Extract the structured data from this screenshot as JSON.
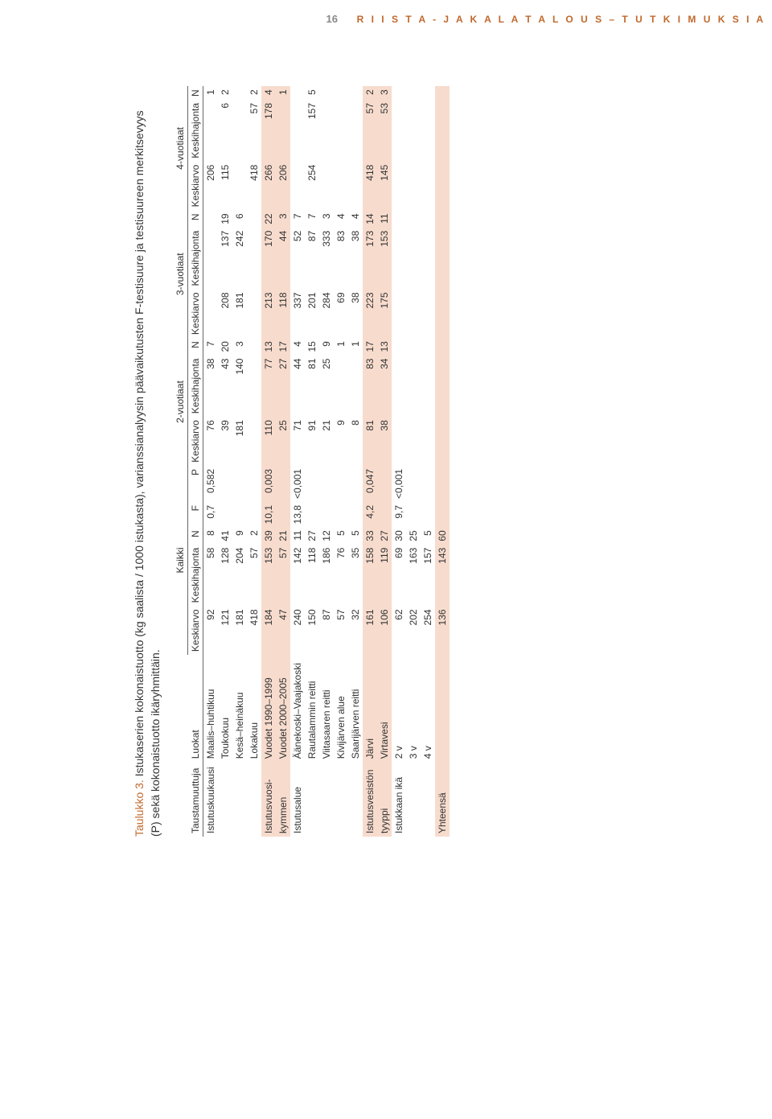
{
  "header": {
    "page_number": "16",
    "series_title": "R I I S T A -  J A  K A L A T A L O U S  –  T U T K I M U K S I A"
  },
  "caption": {
    "label": "Taulukko 3.",
    "text_line1": " Istukaserien kokonaistuotto (kg saalista / 1000 istukasta), varianssianalyysin päävaikutusten F-testisuure ja testisuureen merkitsevyys ",
    "text_line2": "(P) sekä kokonaistuotto ikäryhmittäin."
  },
  "col_groups": [
    {
      "label": "Kaikki",
      "has_extra": true
    },
    {
      "label": "2-vuotiaat",
      "has_extra": false
    },
    {
      "label": "3-vuotiaat",
      "has_extra": false
    },
    {
      "label": "4-vuotiaat",
      "has_extra": false
    }
  ],
  "base_cols": [
    "Keskiarvo",
    "Keskihajonta",
    "N"
  ],
  "extra_cols": [
    "F",
    "P"
  ],
  "row_head": {
    "var": "Taustamuuttuja",
    "cat": "Luokat"
  },
  "groups": [
    {
      "banded": false,
      "rows": [
        {
          "var": "Istutuskuukausi",
          "cat": "Maalis–huhtikuu",
          "k_m": "92",
          "k_s": "58",
          "k_n": "8",
          "k_f": "0,7",
          "k_p": "0,582",
          "a2_m": "76",
          "a2_s": "38",
          "a2_n": "7",
          "a3_m": "",
          "a3_s": "",
          "a3_n": "",
          "a4_m": "206",
          "a4_s": "",
          "a4_n": "1"
        },
        {
          "var": "",
          "cat": "Toukokuu",
          "k_m": "121",
          "k_s": "128",
          "k_n": "41",
          "k_f": "",
          "k_p": "",
          "a2_m": "39",
          "a2_s": "43",
          "a2_n": "20",
          "a3_m": "208",
          "a3_s": "137",
          "a3_n": "19",
          "a4_m": "115",
          "a4_s": "6",
          "a4_n": "2"
        },
        {
          "var": "",
          "cat": "Kesä–heinäkuu",
          "k_m": "181",
          "k_s": "204",
          "k_n": "9",
          "k_f": "",
          "k_p": "",
          "a2_m": "181",
          "a2_s": "140",
          "a2_n": "3",
          "a3_m": "181",
          "a3_s": "242",
          "a3_n": "6",
          "a4_m": "",
          "a4_s": "",
          "a4_n": ""
        },
        {
          "var": "",
          "cat": "Lokakuu",
          "k_m": "418",
          "k_s": "57",
          "k_n": "2",
          "k_f": "",
          "k_p": "",
          "a2_m": "",
          "a2_s": "",
          "a2_n": "",
          "a3_m": "",
          "a3_s": "",
          "a3_n": "",
          "a4_m": "418",
          "a4_s": "57",
          "a4_n": "2"
        }
      ]
    },
    {
      "banded": true,
      "rows": [
        {
          "var": "Istutusvuosi-",
          "cat": "Vuodet 1990–1999",
          "k_m": "184",
          "k_s": "153",
          "k_n": "39",
          "k_f": "10,1",
          "k_p": "0,003",
          "a2_m": "110",
          "a2_s": "77",
          "a2_n": "13",
          "a3_m": "213",
          "a3_s": "170",
          "a3_n": "22",
          "a4_m": "266",
          "a4_s": "178",
          "a4_n": "4"
        },
        {
          "var": "kymmen",
          "cat": "Vuodet 2000–2005",
          "k_m": "47",
          "k_s": "57",
          "k_n": "21",
          "k_f": "",
          "k_p": "",
          "a2_m": "25",
          "a2_s": "27",
          "a2_n": "17",
          "a3_m": "118",
          "a3_s": "44",
          "a3_n": "3",
          "a4_m": "206",
          "a4_s": "",
          "a4_n": "1"
        }
      ]
    },
    {
      "banded": false,
      "rows": [
        {
          "var": "Istutusalue",
          "cat": "Äänekoski–Vaajakoski",
          "k_m": "240",
          "k_s": "142",
          "k_n": "11",
          "k_f": "13,8",
          "k_p": "<0,001",
          "a2_m": "71",
          "a2_s": "44",
          "a2_n": "4",
          "a3_m": "337",
          "a3_s": "52",
          "a3_n": "7",
          "a4_m": "",
          "a4_s": "",
          "a4_n": ""
        },
        {
          "var": "",
          "cat": "Rautalammin reitti",
          "k_m": "150",
          "k_s": "118",
          "k_n": "27",
          "k_f": "",
          "k_p": "",
          "a2_m": "91",
          "a2_s": "81",
          "a2_n": "15",
          "a3_m": "201",
          "a3_s": "87",
          "a3_n": "7",
          "a4_m": "254",
          "a4_s": "157",
          "a4_n": "5"
        },
        {
          "var": "",
          "cat": "Viitasaaren reitti",
          "k_m": "87",
          "k_s": "186",
          "k_n": "12",
          "k_f": "",
          "k_p": "",
          "a2_m": "21",
          "a2_s": "25",
          "a2_n": "9",
          "a3_m": "284",
          "a3_s": "333",
          "a3_n": "3",
          "a4_m": "",
          "a4_s": "",
          "a4_n": ""
        },
        {
          "var": "",
          "cat": "Kivijärven alue",
          "k_m": "57",
          "k_s": "76",
          "k_n": "5",
          "k_f": "",
          "k_p": "",
          "a2_m": "9",
          "a2_s": "",
          "a2_n": "1",
          "a3_m": "69",
          "a3_s": "83",
          "a3_n": "4",
          "a4_m": "",
          "a4_s": "",
          "a4_n": ""
        },
        {
          "var": "",
          "cat": "Saarijärven reitti",
          "k_m": "32",
          "k_s": "35",
          "k_n": "5",
          "k_f": "",
          "k_p": "",
          "a2_m": "8",
          "a2_s": "",
          "a2_n": "1",
          "a3_m": "38",
          "a3_s": "38",
          "a3_n": "4",
          "a4_m": "",
          "a4_s": "",
          "a4_n": ""
        }
      ]
    },
    {
      "banded": true,
      "rows": [
        {
          "var": "Istutusvesistön",
          "cat": "Järvi",
          "k_m": "161",
          "k_s": "158",
          "k_n": "33",
          "k_f": "4,2",
          "k_p": "0,047",
          "a2_m": "81",
          "a2_s": "83",
          "a2_n": "17",
          "a3_m": "223",
          "a3_s": "173",
          "a3_n": "14",
          "a4_m": "418",
          "a4_s": "57",
          "a4_n": "2"
        },
        {
          "var": "tyyppi",
          "cat": "Virtavesi",
          "k_m": "106",
          "k_s": "119",
          "k_n": "27",
          "k_f": "",
          "k_p": "",
          "a2_m": "38",
          "a2_s": "34",
          "a2_n": "13",
          "a3_m": "175",
          "a3_s": "153",
          "a3_n": "11",
          "a4_m": "145",
          "a4_s": "53",
          "a4_n": "3"
        }
      ]
    },
    {
      "banded": false,
      "rows": [
        {
          "var": "Istukkaan ikä",
          "cat": "2 v",
          "k_m": "62",
          "k_s": "69",
          "k_n": "30",
          "k_f": "9,7",
          "k_p": "<0,001",
          "a2_m": "",
          "a2_s": "",
          "a2_n": "",
          "a3_m": "",
          "a3_s": "",
          "a3_n": "",
          "a4_m": "",
          "a4_s": "",
          "a4_n": ""
        },
        {
          "var": "",
          "cat": "3 v",
          "k_m": "202",
          "k_s": "163",
          "k_n": "25",
          "k_f": "",
          "k_p": "",
          "a2_m": "",
          "a2_s": "",
          "a2_n": "",
          "a3_m": "",
          "a3_s": "",
          "a3_n": "",
          "a4_m": "",
          "a4_s": "",
          "a4_n": ""
        },
        {
          "var": "",
          "cat": "4 v",
          "k_m": "254",
          "k_s": "157",
          "k_n": "5",
          "k_f": "",
          "k_p": "",
          "a2_m": "",
          "a2_s": "",
          "a2_n": "",
          "a3_m": "",
          "a3_s": "",
          "a3_n": "",
          "a4_m": "",
          "a4_s": "",
          "a4_n": ""
        }
      ]
    },
    {
      "banded": true,
      "rows": [
        {
          "var": "Yhteensä",
          "cat": "",
          "k_m": "136",
          "k_s": "143",
          "k_n": "60",
          "k_f": "",
          "k_p": "",
          "a2_m": "",
          "a2_s": "",
          "a2_n": "",
          "a3_m": "",
          "a3_s": "",
          "a3_n": "",
          "a4_m": "",
          "a4_s": "",
          "a4_n": ""
        }
      ]
    }
  ]
}
